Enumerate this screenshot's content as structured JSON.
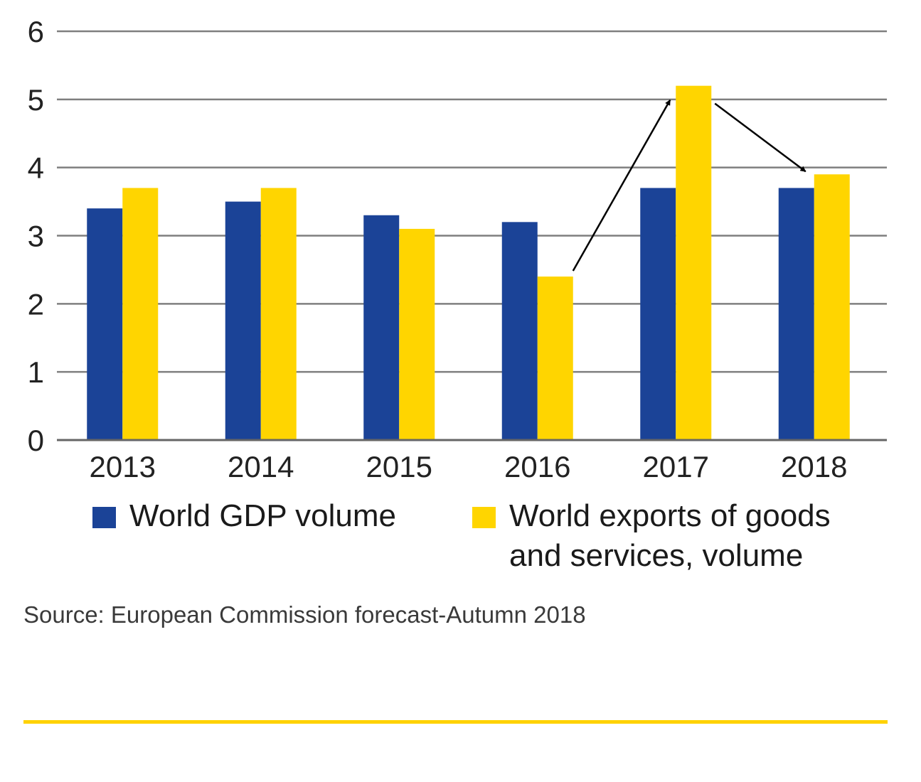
{
  "chart_data": {
    "type": "bar",
    "categories": [
      "2013",
      "2014",
      "2015",
      "2016",
      "2017",
      "2018"
    ],
    "series": [
      {
        "name": "World GDP volume",
        "color": "#1b4397",
        "values": [
          3.4,
          3.5,
          3.3,
          3.2,
          3.7,
          3.7
        ]
      },
      {
        "name": "World exports of goods and services, volume",
        "color": "#ffd500",
        "values": [
          3.7,
          3.7,
          3.1,
          2.4,
          5.2,
          3.9
        ]
      }
    ],
    "ylim": [
      0,
      6
    ],
    "yticks": [
      "0",
      "1",
      "2",
      "3",
      "4",
      "5",
      "6"
    ],
    "grid": true,
    "legend_position": "bottom",
    "annotations": [
      {
        "type": "arrow",
        "from": {
          "category": "2016",
          "series": 1
        },
        "to": {
          "category": "2017",
          "series": 1
        }
      },
      {
        "type": "arrow",
        "from": {
          "category": "2017",
          "series": 1
        },
        "to": {
          "category": "2018",
          "series": 1
        }
      }
    ]
  },
  "legend": {
    "gdp_label": "World GDP volume",
    "exports_label_line1": "World exports of goods",
    "exports_label_line2": "and services, volume"
  },
  "source": "Source: European Commission forecast-Autumn 2018",
  "colors": {
    "gdp": "#1b4397",
    "exports": "#ffd500",
    "grid": "#7f7f7f",
    "footer_rule": "#ffd200"
  }
}
